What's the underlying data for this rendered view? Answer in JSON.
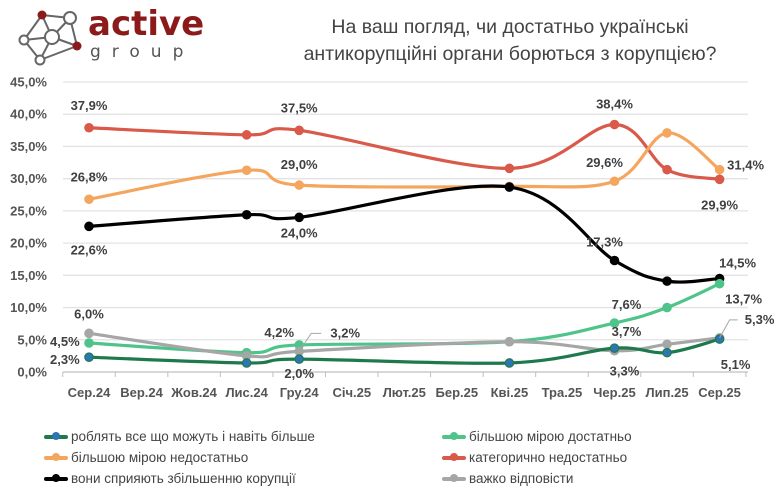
{
  "header": {
    "logo": {
      "word": "active",
      "sub": "group"
    },
    "title_lines": [
      "На ваш погляд, чи достатньо українські",
      "антикорупційні органи борються з корупцією?"
    ]
  },
  "chart_data": {
    "type": "line",
    "title": "На ваш погляд, чи достатньо українські антикорупційні органи борються з корупцією?",
    "categories": [
      "Сер.24",
      "Вер.24",
      "Жов.24",
      "Лис.24",
      "Гру.24",
      "Січ.25",
      "Лют.25",
      "Бер.25",
      "Кві.25",
      "Тра.25",
      "Чер.25",
      "Лип.25",
      "Сер.25"
    ],
    "y_ticks": [
      "0,0%",
      "5,0%",
      "10,0%",
      "15,0%",
      "20,0%",
      "25,0%",
      "30,0%",
      "35,0%",
      "40,0%",
      "45,0%"
    ],
    "ylim": [
      0,
      45
    ],
    "grid": true,
    "legend_position": "bottom",
    "series": [
      {
        "name": "роблять все що можуть і навіть більше",
        "color": "#1e7a4c",
        "marker_color": "#2e75b6",
        "values": [
          2.3,
          null,
          null,
          1.4,
          2.0,
          null,
          null,
          null,
          1.4,
          null,
          3.7,
          3.0,
          5.1
        ],
        "labeled": [
          0,
          4,
          10,
          12
        ]
      },
      {
        "name": "більшою мірою достатньо",
        "color": "#4fc48a",
        "marker_color": "#4fc48a",
        "values": [
          4.5,
          null,
          null,
          3.0,
          4.2,
          null,
          null,
          null,
          4.7,
          null,
          7.6,
          10.0,
          13.7
        ],
        "labeled": [
          0,
          4,
          10,
          12
        ]
      },
      {
        "name": "більшою мірою недостатньо",
        "color": "#f4a65f",
        "marker_color": "#f4a65f",
        "values": [
          26.8,
          null,
          null,
          31.3,
          29.0,
          null,
          null,
          null,
          28.8,
          null,
          29.6,
          37.1,
          31.4
        ],
        "labeled": [
          0,
          4,
          10,
          12
        ]
      },
      {
        "name": "категорично недостатньо",
        "color": "#d9594a",
        "marker_color": "#d9594a",
        "values": [
          37.9,
          null,
          null,
          36.8,
          37.5,
          null,
          null,
          null,
          31.6,
          null,
          38.4,
          31.4,
          29.9
        ],
        "labeled": [
          0,
          4,
          10,
          12
        ]
      },
      {
        "name": "вони сприяють збільшенню корупції",
        "color": "#000000",
        "marker_color": "#000000",
        "values": [
          22.6,
          null,
          null,
          24.4,
          24.0,
          null,
          null,
          null,
          28.7,
          null,
          17.3,
          14.1,
          14.5
        ],
        "labeled": [
          0,
          4,
          10,
          12
        ]
      },
      {
        "name": "важко відповісти",
        "color": "#a6a6a6",
        "marker_color": "#a6a6a6",
        "values": [
          6.0,
          null,
          null,
          2.5,
          3.2,
          null,
          null,
          null,
          4.7,
          null,
          3.3,
          4.3,
          5.3
        ],
        "labeled": [
          0,
          4,
          10,
          12
        ]
      }
    ]
  }
}
